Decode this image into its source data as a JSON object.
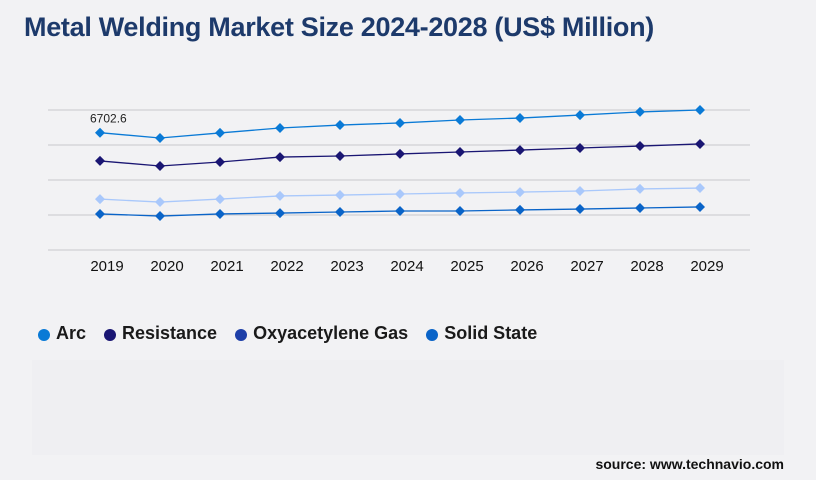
{
  "title": "Metal Welding Market Size 2024-2028 (US$ Million)",
  "source": "source: www.technavio.com",
  "chart_data": {
    "type": "line",
    "title": "Metal Welding Market Size 2024-2028 (US$ Million)",
    "categories": [
      "2019",
      "2020",
      "2021",
      "2022",
      "2023",
      "2024",
      "2025",
      "2026",
      "2027",
      "2028",
      "2029"
    ],
    "ylim": [
      0,
      8000
    ],
    "grid": true,
    "legend_position": "bottom-left",
    "annotation": "6702.6",
    "series": [
      {
        "name": "Arc",
        "color": "#0a7ad6",
        "line_color": "#0a7ad6",
        "values": [
          6702.6,
          6400,
          6690,
          6970,
          7140,
          7260,
          7430,
          7540,
          7710,
          7890,
          8000
        ]
      },
      {
        "name": "Resistance",
        "color": "#1a1673",
        "line_color": "#1a1673",
        "values": [
          5090,
          4800,
          5030,
          5310,
          5370,
          5490,
          5600,
          5710,
          5830,
          5940,
          6060
        ]
      },
      {
        "name": "Oxyacetylene Gas",
        "color": "#1e3fa8",
        "line_color": "#a9c8fb",
        "values": [
          2910,
          2740,
          2910,
          3090,
          3140,
          3200,
          3260,
          3310,
          3370,
          3490,
          3540
        ]
      },
      {
        "name": "Solid State",
        "color": "#0a64c8",
        "line_color": "#0a64c8",
        "values": [
          2060,
          1940,
          2060,
          2110,
          2170,
          2230,
          2230,
          2290,
          2340,
          2400,
          2460
        ]
      }
    ]
  }
}
